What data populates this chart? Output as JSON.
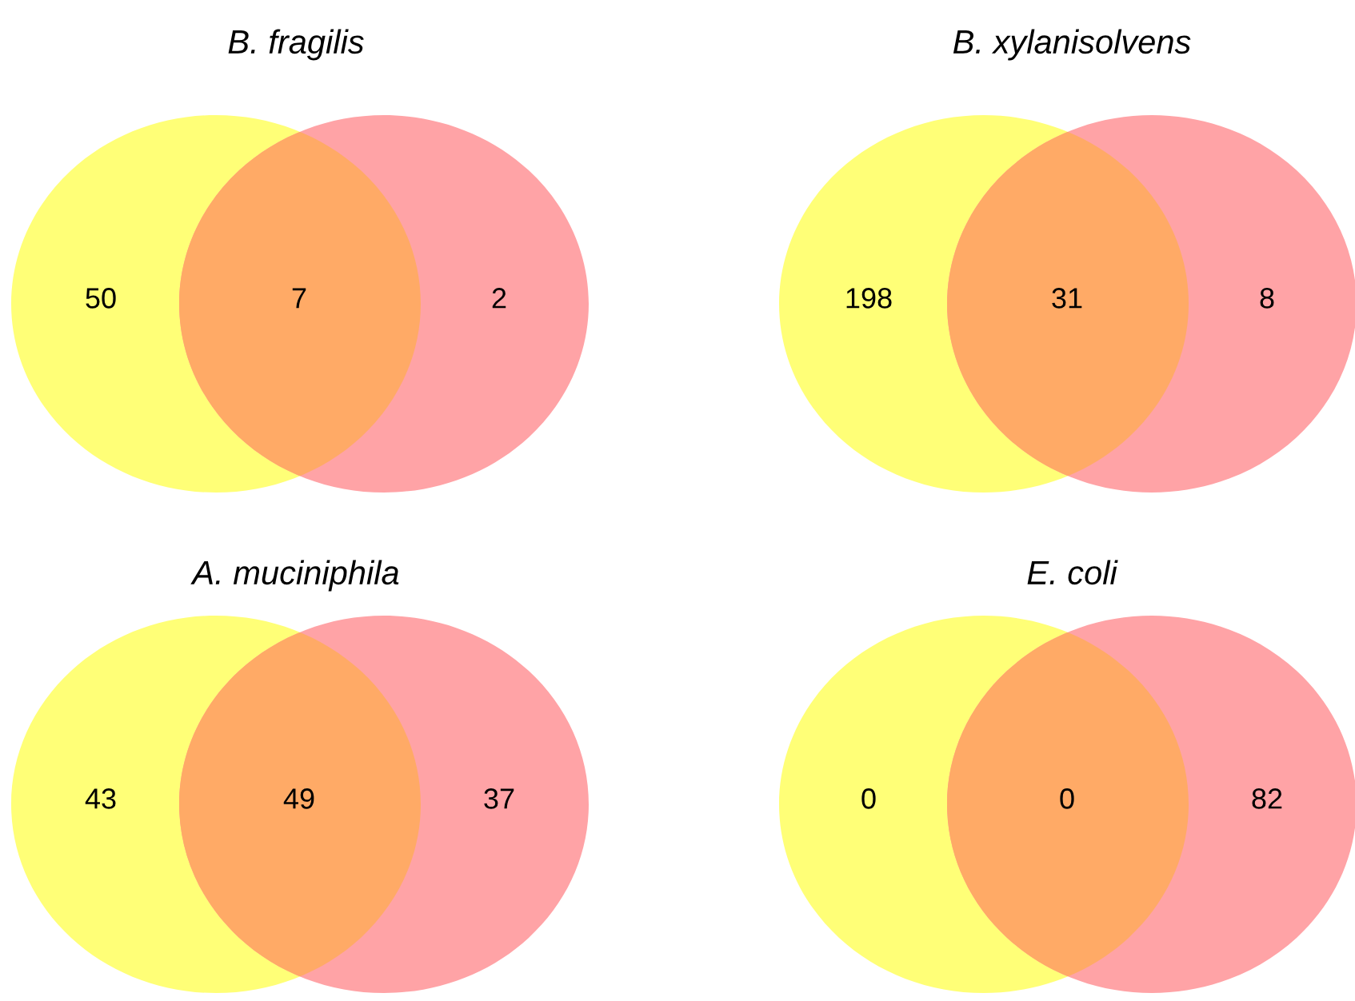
{
  "chart_data": [
    {
      "type": "other",
      "title": "B. fragilis",
      "categories": [
        null,
        null,
        null
      ],
      "values": [
        50,
        7,
        2
      ],
      "data_labels": true,
      "colors": [
        "#ffff77",
        "#ffaa66",
        "#ffa3a6"
      ]
    },
    {
      "type": "other",
      "title": "B. xylanisolvens",
      "categories": [
        null,
        null,
        null
      ],
      "values": [
        198,
        31,
        8
      ],
      "data_labels": true,
      "colors": [
        "#ffff77",
        "#ffaa66",
        "#ffa3a6"
      ]
    },
    {
      "type": "other",
      "title": "A. muciniphila",
      "categories": [
        null,
        null,
        null
      ],
      "values": [
        43,
        49,
        37
      ],
      "data_labels": true,
      "colors": [
        "#ffff77",
        "#ffaa66",
        "#ffa3a6"
      ]
    },
    {
      "type": "other",
      "title": "E. coli",
      "categories": [
        null,
        null,
        null
      ],
      "values": [
        0,
        0,
        82
      ],
      "data_labels": true,
      "colors": [
        "#ffff77",
        "#ffaa66",
        "#ffa3a6"
      ]
    }
  ]
}
